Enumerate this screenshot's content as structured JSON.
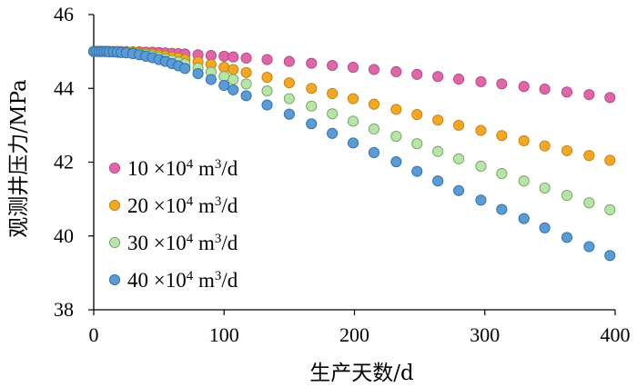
{
  "chart_data": {
    "type": "scatter",
    "title": "",
    "xlabel": "生产天数/d",
    "ylabel": "观测井压力/MPa",
    "xlim": [
      0,
      400
    ],
    "ylim": [
      38,
      46
    ],
    "xticks": [
      "0",
      "100",
      "200",
      "300",
      "400"
    ],
    "yticks": [
      "38",
      "40",
      "42",
      "44",
      "46"
    ],
    "grid": false,
    "legend": "left",
    "series": [
      {
        "name": "10 ×10⁴ m³/d",
        "label_parts": {
          "pre": "10 ×10",
          "sup1": "4",
          "mid": " m",
          "sup2": "3",
          "post": "/d"
        },
        "color": "#E066A8",
        "stroke": "#B04783",
        "x": [
          0,
          2,
          4,
          6,
          8,
          10,
          12,
          15,
          18,
          21,
          25,
          30,
          35,
          40,
          45,
          50,
          55,
          60,
          65,
          70,
          80,
          90,
          100,
          107,
          117,
          133,
          150,
          167,
          183,
          199,
          215,
          232,
          248,
          264,
          280,
          297,
          313,
          330,
          346,
          363,
          380,
          396
        ],
        "y": [
          45.0,
          45.0,
          45.0,
          45.0,
          45.0,
          45.0,
          45.0,
          45.0,
          45.0,
          45.0,
          45.0,
          44.99,
          44.99,
          44.98,
          44.98,
          44.97,
          44.96,
          44.95,
          44.94,
          44.93,
          44.91,
          44.89,
          44.87,
          44.85,
          44.82,
          44.78,
          44.73,
          44.68,
          44.62,
          44.57,
          44.51,
          44.45,
          44.38,
          44.32,
          44.25,
          44.18,
          44.12,
          44.05,
          43.98,
          43.9,
          43.83,
          43.75
        ]
      },
      {
        "name": "20 ×10⁴ m³/d",
        "label_parts": {
          "pre": "20 ×10",
          "sup1": "4",
          "mid": " m",
          "sup2": "3",
          "post": "/d"
        },
        "color": "#F5A623",
        "stroke": "#C07F12",
        "x": [
          0,
          2,
          4,
          6,
          8,
          10,
          12,
          15,
          18,
          21,
          25,
          30,
          35,
          40,
          45,
          50,
          55,
          60,
          65,
          70,
          80,
          90,
          100,
          107,
          117,
          133,
          150,
          167,
          183,
          199,
          215,
          232,
          248,
          264,
          280,
          297,
          313,
          330,
          346,
          363,
          380,
          396
        ],
        "y": [
          45.0,
          45.0,
          45.0,
          45.0,
          45.0,
          45.0,
          45.0,
          45.0,
          45.0,
          44.99,
          44.99,
          44.98,
          44.97,
          44.95,
          44.93,
          44.9,
          44.88,
          44.85,
          44.82,
          44.78,
          44.72,
          44.65,
          44.57,
          44.51,
          44.43,
          44.3,
          44.15,
          44.0,
          43.86,
          43.72,
          43.57,
          43.43,
          43.29,
          43.14,
          43.0,
          42.86,
          42.72,
          42.58,
          42.44,
          42.31,
          42.18,
          42.05
        ]
      },
      {
        "name": "30 ×10⁴ m³/d",
        "label_parts": {
          "pre": "30 ×10",
          "sup1": "4",
          "mid": " m",
          "sup2": "3",
          "post": "/d"
        },
        "color": "#B9E4A8",
        "stroke": "#6FA35C",
        "x": [
          0,
          2,
          4,
          6,
          8,
          10,
          12,
          15,
          18,
          21,
          25,
          30,
          35,
          40,
          45,
          50,
          55,
          60,
          65,
          70,
          80,
          90,
          100,
          107,
          117,
          133,
          150,
          167,
          183,
          199,
          215,
          232,
          248,
          264,
          280,
          297,
          313,
          330,
          346,
          363,
          380,
          396
        ],
        "y": [
          45.0,
          45.0,
          45.0,
          45.0,
          45.0,
          45.0,
          45.0,
          44.99,
          44.99,
          44.98,
          44.97,
          44.96,
          44.94,
          44.91,
          44.88,
          44.84,
          44.8,
          44.76,
          44.71,
          44.66,
          44.55,
          44.44,
          44.32,
          44.24,
          44.12,
          43.93,
          43.72,
          43.52,
          43.31,
          43.11,
          42.9,
          42.7,
          42.5,
          42.29,
          42.09,
          41.89,
          41.69,
          41.49,
          41.3,
          41.1,
          40.9,
          40.71
        ]
      },
      {
        "name": "40 ×10⁴ m³/d",
        "label_parts": {
          "pre": "40 ×10",
          "sup1": "4",
          "mid": " m",
          "sup2": "3",
          "post": "/d"
        },
        "color": "#5B9BD5",
        "stroke": "#2E6DA8",
        "x": [
          0,
          2,
          4,
          6,
          8,
          10,
          12,
          15,
          18,
          21,
          25,
          30,
          35,
          40,
          45,
          50,
          55,
          60,
          65,
          70,
          80,
          90,
          100,
          107,
          117,
          133,
          150,
          167,
          183,
          199,
          215,
          232,
          248,
          264,
          280,
          297,
          313,
          330,
          346,
          363,
          380,
          396
        ],
        "y": [
          45.0,
          45.0,
          45.0,
          45.0,
          45.0,
          45.0,
          44.99,
          44.99,
          44.98,
          44.97,
          44.96,
          44.94,
          44.91,
          44.87,
          44.83,
          44.78,
          44.73,
          44.67,
          44.61,
          44.54,
          44.4,
          44.24,
          44.08,
          43.96,
          43.8,
          43.55,
          43.3,
          43.04,
          42.78,
          42.52,
          42.26,
          42.01,
          41.75,
          41.49,
          41.23,
          40.97,
          40.72,
          40.47,
          40.22,
          39.96,
          39.71,
          39.47
        ]
      }
    ]
  }
}
